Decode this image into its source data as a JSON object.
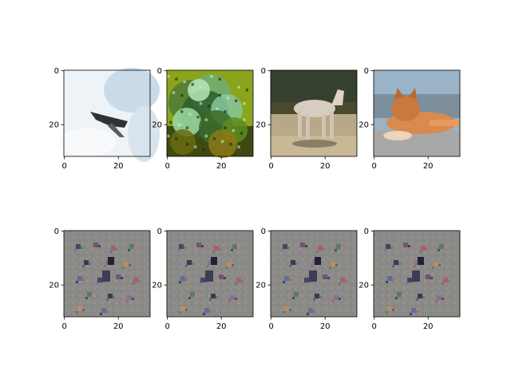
{
  "chart_data": {
    "type": "image_grid",
    "grid": {
      "rows": 2,
      "cols": 4
    },
    "panels": [
      {
        "row": 0,
        "col": 0,
        "depicts": "airplane in sky",
        "image_size": [
          32,
          32
        ],
        "xticks": [
          0,
          20
        ],
        "yticks": [
          0,
          20
        ]
      },
      {
        "row": 0,
        "col": 1,
        "depicts": "green foliage",
        "image_size": [
          32,
          32
        ],
        "xticks": [
          0,
          20
        ],
        "yticks": [
          0,
          20
        ]
      },
      {
        "row": 0,
        "col": 2,
        "depicts": "horse",
        "image_size": [
          32,
          32
        ],
        "xticks": [
          0,
          20
        ],
        "yticks": [
          0,
          20
        ]
      },
      {
        "row": 0,
        "col": 3,
        "depicts": "orange cat",
        "image_size": [
          32,
          32
        ],
        "xticks": [
          0,
          20
        ],
        "yticks": [
          0,
          20
        ]
      },
      {
        "row": 1,
        "col": 0,
        "depicts": "gray noise pattern",
        "image_size": [
          32,
          32
        ],
        "xticks": [
          0,
          20
        ],
        "yticks": [
          0,
          20
        ]
      },
      {
        "row": 1,
        "col": 1,
        "depicts": "gray noise pattern",
        "image_size": [
          32,
          32
        ],
        "xticks": [
          0,
          20
        ],
        "yticks": [
          0,
          20
        ]
      },
      {
        "row": 1,
        "col": 2,
        "depicts": "gray noise pattern",
        "image_size": [
          32,
          32
        ],
        "xticks": [
          0,
          20
        ],
        "yticks": [
          0,
          20
        ]
      },
      {
        "row": 1,
        "col": 3,
        "depicts": "gray noise pattern",
        "image_size": [
          32,
          32
        ],
        "xticks": [
          0,
          20
        ],
        "yticks": [
          0,
          20
        ]
      }
    ]
  }
}
